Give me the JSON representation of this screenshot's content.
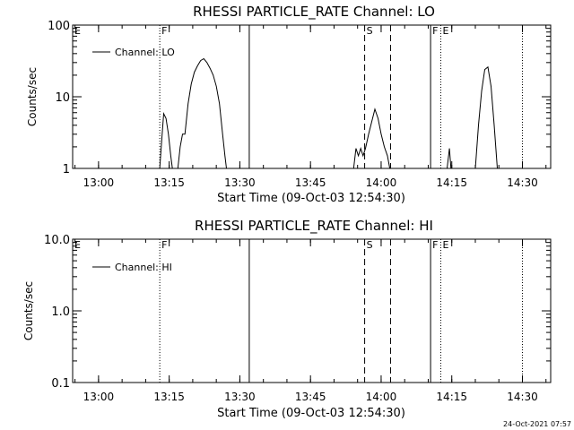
{
  "footer": {
    "timestamp": "24-Oct-2021 07:57"
  },
  "chart_data": [
    {
      "type": "line",
      "title": "RHESSI PARTICLE_RATE Channel: LO",
      "xlabel": "Start Time (09-Oct-03 12:54:30)",
      "ylabel": "Counts/sec",
      "yscale": "log",
      "xlim": [
        "12:54:30",
        "14:36:00"
      ],
      "ylim": [
        1,
        100
      ],
      "x_ticks": [
        "13:00",
        "13:15",
        "13:30",
        "13:45",
        "14:00",
        "14:15",
        "14:30"
      ],
      "y_ticks": [
        "1",
        "10",
        "100"
      ],
      "legend": {
        "position": "top-left",
        "entries": [
          "Channel: LO"
        ]
      },
      "events": [
        {
          "label": "E",
          "time": "12:54:30",
          "style": "none"
        },
        {
          "label": "F",
          "time": "13:13:00",
          "style": "dotted"
        },
        {
          "label": "",
          "time": "13:32:00",
          "style": "solid"
        },
        {
          "label": "S",
          "time": "13:56:30",
          "style": "dashed"
        },
        {
          "label": "",
          "time": "14:02:00",
          "style": "dashed"
        },
        {
          "label": "F",
          "time": "14:10:30",
          "style": "solid"
        },
        {
          "label": "E",
          "time": "14:12:40",
          "style": "dotted"
        },
        {
          "label": "",
          "time": "14:30:00",
          "style": "dotted"
        }
      ],
      "series": [
        {
          "name": "Channel: LO",
          "segments": [
            [
              [
                "13:13:00",
                1
              ],
              [
                "13:13:30",
                3
              ],
              [
                "13:13:50",
                5.8
              ],
              [
                "13:14:20",
                5
              ],
              [
                "13:14:50",
                3
              ],
              [
                "13:15:20",
                1.5
              ],
              [
                "13:15:40",
                1
              ]
            ],
            [
              [
                "13:16:50",
                1
              ],
              [
                "13:17:20",
                2
              ],
              [
                "13:17:50",
                3
              ],
              [
                "13:18:20",
                3
              ],
              [
                "13:19:00",
                8
              ],
              [
                "13:19:40",
                15
              ],
              [
                "13:20:20",
                22
              ],
              [
                "13:21:00",
                27
              ],
              [
                "13:21:40",
                32
              ],
              [
                "13:22:20",
                34
              ],
              [
                "13:23:00",
                30
              ],
              [
                "13:23:40",
                25
              ],
              [
                "13:24:20",
                20
              ],
              [
                "13:25:00",
                14
              ],
              [
                "13:25:40",
                8
              ],
              [
                "13:26:20",
                3
              ],
              [
                "13:26:50",
                1.5
              ],
              [
                "13:27:10",
                1
              ]
            ],
            [
              [
                "13:54:10",
                1
              ],
              [
                "13:54:40",
                1.9
              ],
              [
                "13:55:10",
                1.5
              ],
              [
                "13:55:40",
                1.9
              ],
              [
                "13:56:10",
                1.5
              ],
              [
                "13:56:40",
                1.9
              ],
              [
                "13:57:20",
                3
              ],
              [
                "13:58:00",
                4.5
              ],
              [
                "13:58:40",
                6.7
              ],
              [
                "13:59:20",
                5
              ],
              [
                "14:00:00",
                3
              ],
              [
                "14:00:40",
                2
              ],
              [
                "14:01:20",
                1.5
              ],
              [
                "14:01:50",
                1
              ]
            ],
            [
              [
                "14:14:00",
                1
              ],
              [
                "14:14:30",
                1.9
              ],
              [
                "14:14:50",
                1
              ]
            ],
            [
              [
                "14:20:00",
                1
              ],
              [
                "14:20:40",
                4
              ],
              [
                "14:21:20",
                12
              ],
              [
                "14:22:00",
                24
              ],
              [
                "14:22:40",
                26
              ],
              [
                "14:23:20",
                14
              ],
              [
                "14:24:00",
                4
              ],
              [
                "14:24:40",
                1
              ]
            ]
          ]
        }
      ]
    },
    {
      "type": "line",
      "title": "RHESSI PARTICLE_RATE Channel: HI",
      "xlabel": "Start Time (09-Oct-03 12:54:30)",
      "ylabel": "Counts/sec",
      "yscale": "log",
      "xlim": [
        "12:54:30",
        "14:36:00"
      ],
      "ylim": [
        0.1,
        10.0
      ],
      "x_ticks": [
        "13:00",
        "13:15",
        "13:30",
        "13:45",
        "14:00",
        "14:15",
        "14:30"
      ],
      "y_ticks": [
        "0.1",
        "1.0",
        "10.0"
      ],
      "legend": {
        "position": "top-left",
        "entries": [
          "Channel: HI"
        ]
      },
      "events": [
        {
          "label": "E",
          "time": "12:54:30",
          "style": "none"
        },
        {
          "label": "F",
          "time": "13:13:00",
          "style": "dotted"
        },
        {
          "label": "",
          "time": "13:32:00",
          "style": "solid"
        },
        {
          "label": "S",
          "time": "13:56:30",
          "style": "dashed"
        },
        {
          "label": "",
          "time": "14:02:00",
          "style": "dashed"
        },
        {
          "label": "F",
          "time": "14:10:30",
          "style": "solid"
        },
        {
          "label": "E",
          "time": "14:12:40",
          "style": "dotted"
        },
        {
          "label": "",
          "time": "14:30:00",
          "style": "dotted"
        }
      ],
      "series": [
        {
          "name": "Channel: HI",
          "segments": []
        }
      ]
    }
  ]
}
